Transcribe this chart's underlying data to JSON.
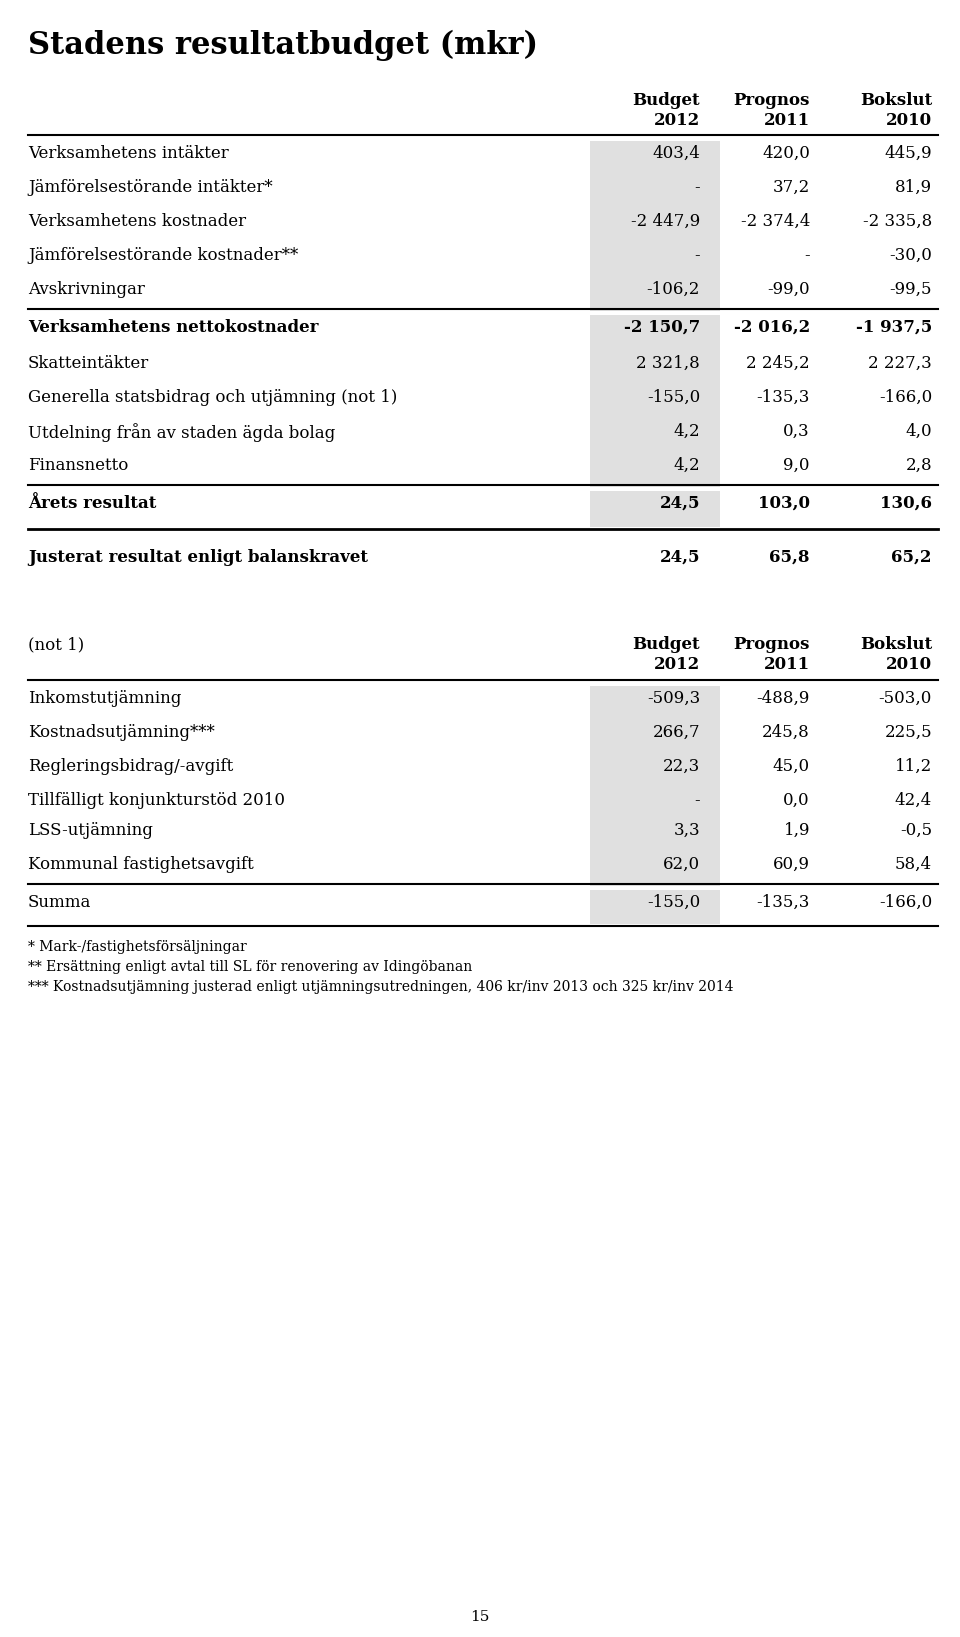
{
  "title": "Stadens resultatbudget (mkr)",
  "header_top": [
    "Budget",
    "Prognos",
    "Bokslut"
  ],
  "header_bot": [
    "2012",
    "2011",
    "2010"
  ],
  "main_table": [
    {
      "label": "Verksamhetens intäkter",
      "values": [
        "403,4",
        "420,0",
        "445,9"
      ],
      "bold": false,
      "shade": true,
      "line_before": false
    },
    {
      "label": "Jämförelsestörande intäkter*",
      "values": [
        "-",
        "37,2",
        "81,9"
      ],
      "bold": false,
      "shade": true,
      "line_before": false
    },
    {
      "label": "Verksamhetens kostnader",
      "values": [
        "-2 447,9",
        "-2 374,4",
        "-2 335,8"
      ],
      "bold": false,
      "shade": true,
      "line_before": false
    },
    {
      "label": "Jämförelsestörande kostnader**",
      "values": [
        "-",
        "-",
        "-30,0"
      ],
      "bold": false,
      "shade": true,
      "line_before": false
    },
    {
      "label": "Avskrivningar",
      "values": [
        "-106,2",
        "-99,0",
        "-99,5"
      ],
      "bold": false,
      "shade": true,
      "line_before": false
    },
    {
      "label": "Verksamhetens nettokostnader",
      "values": [
        "-2 150,7",
        "-2 016,2",
        "-1 937,5"
      ],
      "bold": true,
      "shade": true,
      "line_before": true
    },
    {
      "label": "Skatteintäkter",
      "values": [
        "2 321,8",
        "2 245,2",
        "2 227,3"
      ],
      "bold": false,
      "shade": true,
      "line_before": false
    },
    {
      "label": "Generella statsbidrag och utjämning (not 1)",
      "values": [
        "-155,0",
        "-135,3",
        "-166,0"
      ],
      "bold": false,
      "shade": true,
      "line_before": false
    },
    {
      "label": "Utdelning från av staden ägda bolag",
      "values": [
        "4,2",
        "0,3",
        "4,0"
      ],
      "bold": false,
      "shade": true,
      "line_before": false
    },
    {
      "label": "Finansnetto",
      "values": [
        "4,2",
        "9,0",
        "2,8"
      ],
      "bold": false,
      "shade": true,
      "line_before": false
    },
    {
      "label": "Årets resultat",
      "values": [
        "24,5",
        "103,0",
        "130,6"
      ],
      "bold": true,
      "shade": true,
      "line_before": true,
      "line_after": true
    },
    {
      "label": "Justerat resultat enligt balanskravet",
      "values": [
        "24,5",
        "65,8",
        "65,2"
      ],
      "bold": true,
      "shade": false,
      "line_before": false,
      "extra_space_before": true
    }
  ],
  "not1_table": [
    {
      "label": "Inkomstutjämning",
      "values": [
        "-509,3",
        "-488,9",
        "-503,0"
      ],
      "bold": false,
      "shade": true
    },
    {
      "label": "Kostnadsutjämning***",
      "values": [
        "266,7",
        "245,8",
        "225,5"
      ],
      "bold": false,
      "shade": true
    },
    {
      "label": "Regleringsbidrag/-avgift",
      "values": [
        "22,3",
        "45,0",
        "11,2"
      ],
      "bold": false,
      "shade": true
    },
    {
      "label": "Tillfälligt konjunkturstöd 2010",
      "values": [
        "-",
        "0,0",
        "42,4"
      ],
      "bold": false,
      "shade": true,
      "sub_row": true
    },
    {
      "label": "LSS-utjämning",
      "values": [
        "3,3",
        "1,9",
        "-0,5"
      ],
      "bold": false,
      "shade": true
    },
    {
      "label": "Kommunal fastighetsavgift",
      "values": [
        "62,0",
        "60,9",
        "58,4"
      ],
      "bold": false,
      "shade": true
    },
    {
      "label": "Summa",
      "values": [
        "-155,0",
        "-135,3",
        "-166,0"
      ],
      "bold": false,
      "shade": true,
      "line_before": true
    }
  ],
  "footnotes": [
    "* Mark-/fastighetsförsäljningar",
    "** Ersättning enligt avtal till SL för renovering av Idingöbanan",
    "*** Kostnadsutjämning justerad enligt utjämningsutredningen, 406 kr/inv 2013 och 325 kr/inv 2014"
  ],
  "page_number": "15",
  "shade_color": "#e0e0e0",
  "text_color": "#000000",
  "bg_color": "#ffffff",
  "title_fontsize": 22,
  "header_fontsize": 12,
  "row_fontsize": 12,
  "footnote_fontsize": 10
}
